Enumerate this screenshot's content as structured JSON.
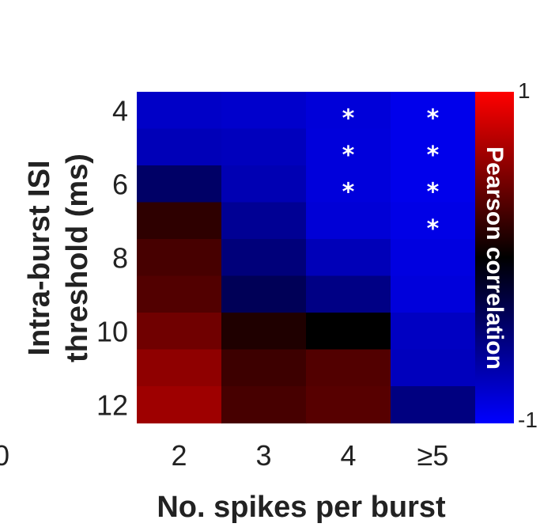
{
  "chart_data": {
    "type": "heatmap",
    "title": "",
    "xlabel": "No. spikes per burst",
    "ylabel_lines": [
      "Intra-burst ISI",
      "threshold (ms)"
    ],
    "x_categories": [
      "2",
      "3",
      "4",
      "≥5"
    ],
    "y_values_ms": [
      4,
      5,
      6,
      7,
      8,
      9,
      10,
      11,
      12
    ],
    "y_tick_labels": [
      "4",
      "6",
      "8",
      "10",
      "12"
    ],
    "values": [
      [
        -0.78,
        -0.8,
        -0.85,
        -0.92
      ],
      [
        -0.72,
        -0.74,
        -0.86,
        -0.92
      ],
      [
        -0.4,
        -0.7,
        -0.86,
        -0.92
      ],
      [
        0.18,
        -0.58,
        -0.84,
        -0.9
      ],
      [
        0.28,
        -0.48,
        -0.72,
        -0.88
      ],
      [
        0.32,
        -0.34,
        -0.52,
        -0.86
      ],
      [
        0.44,
        0.12,
        0.0,
        -0.76
      ],
      [
        0.56,
        0.24,
        0.32,
        -0.74
      ],
      [
        0.62,
        0.28,
        0.34,
        -0.5
      ]
    ],
    "significant_cells": [
      [
        0,
        2
      ],
      [
        0,
        3
      ],
      [
        1,
        2
      ],
      [
        1,
        3
      ],
      [
        2,
        2
      ],
      [
        2,
        3
      ],
      [
        3,
        3
      ]
    ],
    "significance_marker": "*",
    "colorbar": {
      "label": "Pearson correlation",
      "min": -1,
      "max": 1,
      "min_label": "-1",
      "max_label": "1",
      "colors": {
        "negative": "#0000ff",
        "zero": "#000000",
        "positive": "#ff0000"
      }
    },
    "partial_edge_label": "0"
  }
}
